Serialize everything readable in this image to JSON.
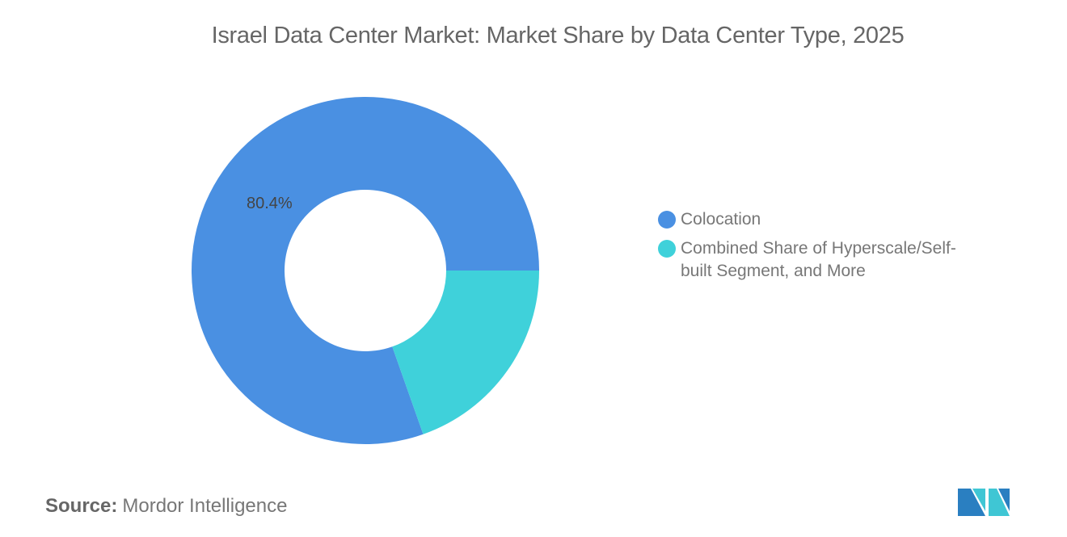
{
  "chart_data": {
    "type": "pie",
    "title": "Israel Data Center Market: Market Share by Data Center Type, 2025",
    "donut": true,
    "slices": [
      {
        "label": "Colocation",
        "value": 80.4,
        "color": "#4a90e2",
        "data_label": "80.4%"
      },
      {
        "label": "Combined Share of Hyperscale/Self-built Segment, and More",
        "value": 19.6,
        "color": "#3fd1da"
      }
    ],
    "legend_position": "right"
  },
  "source": {
    "label": "Source:",
    "value": "Mordor Intelligence"
  }
}
